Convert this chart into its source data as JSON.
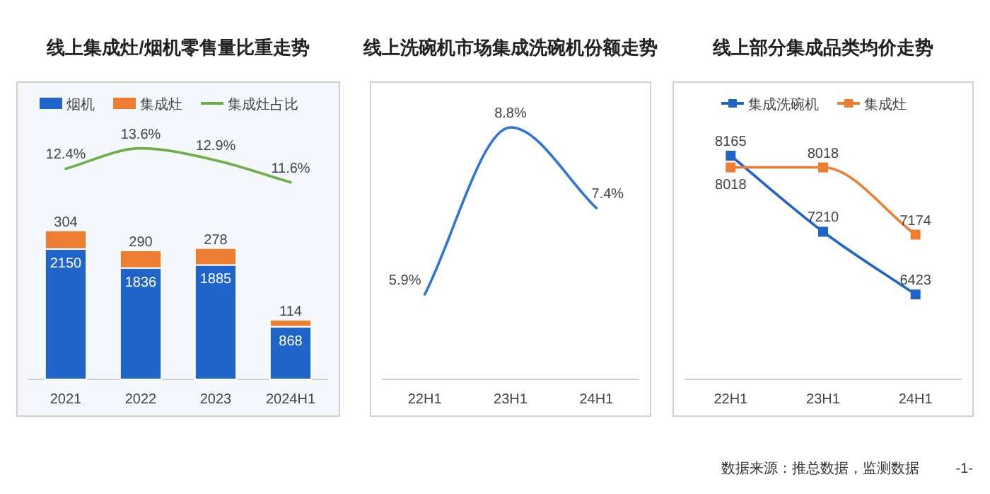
{
  "chart_data": [
    {
      "type": "bar",
      "title": "线上集成灶/烟机零售量比重走势",
      "categories": [
        "2021",
        "2022",
        "2023",
        "2024H1"
      ],
      "stacked": true,
      "data_labels": true,
      "legend": "top",
      "ylim": [
        0,
        4900
      ],
      "y2lim": [
        0,
        17.5
      ],
      "tick_labels": "x",
      "series": [
        {
          "name": "烟机",
          "color": "#1f64c8",
          "values": [
            2150,
            1836,
            1885,
            868
          ]
        },
        {
          "name": "集成灶",
          "color": "#ed7d31",
          "values": [
            304,
            290,
            278,
            114
          ]
        },
        {
          "name": "集成灶占比",
          "type": "line",
          "axis": "y2",
          "color": "#70ad47",
          "values": [
            12.4,
            13.6,
            12.9,
            11.6
          ],
          "value_labels": [
            "12.4%",
            "13.6%",
            "12.9%",
            "11.6%"
          ]
        }
      ]
    },
    {
      "type": "line",
      "title": "线上洗碗机市场集成洗碗机份额走势",
      "categories": [
        "22H1",
        "23H1",
        "24H1"
      ],
      "series": [
        {
          "color": "#2e75d6",
          "values": [
            5.9,
            8.8,
            7.4
          ],
          "value_labels": [
            "5.9%",
            "8.8%",
            "7.4%"
          ]
        }
      ]
    },
    {
      "type": "line",
      "title": "线上部分集成品类均价走势",
      "categories": [
        "22H1",
        "23H1",
        "24H1"
      ],
      "data_labels": true,
      "legend": "top",
      "marker": "square",
      "series": [
        {
          "name": "集成洗碗机",
          "color": "#1f64c8",
          "values": [
            8165,
            7210,
            6423
          ]
        },
        {
          "name": "集成灶",
          "color": "#ed7d31",
          "values": [
            8018,
            8018,
            7174
          ]
        }
      ],
      "annotations": [
        "数据来源：推总数据，监测数据",
        "-1-"
      ]
    }
  ]
}
